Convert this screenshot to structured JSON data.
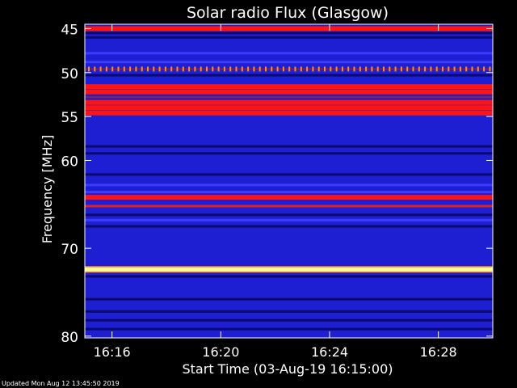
{
  "chart_data": {
    "type": "heatmap",
    "title": "Solar radio Flux (Glasgow)",
    "xlabel": "Start Time (03-Aug-19 16:15:00)",
    "ylabel": "Frequency [MHz]",
    "x_ticks": [
      "16:16",
      "16:20",
      "16:24",
      "16:28"
    ],
    "x_tick_minutes": [
      16,
      20,
      24,
      28
    ],
    "x_range_minutes": [
      15,
      30
    ],
    "y_ticks": [
      45,
      50,
      55,
      60,
      70,
      80
    ],
    "y_range_mhz": [
      44.5,
      80.2
    ],
    "background_level": "blue",
    "bands": [
      {
        "mhz": 45.0,
        "level": "red"
      },
      {
        "mhz": 45.5,
        "level": "dark"
      },
      {
        "mhz": 46.0,
        "level": "dark"
      },
      {
        "mhz": 47.8,
        "level": "bright-blue"
      },
      {
        "mhz": 48.8,
        "level": "bright-blue"
      },
      {
        "mhz": 49.6,
        "level": "orange-ticks"
      },
      {
        "mhz": 50.3,
        "level": "dark"
      },
      {
        "mhz": 51.6,
        "level": "red"
      },
      {
        "mhz": 52.2,
        "level": "red"
      },
      {
        "mhz": 52.8,
        "level": "red-dark"
      },
      {
        "mhz": 53.4,
        "level": "red"
      },
      {
        "mhz": 54.0,
        "level": "red"
      },
      {
        "mhz": 54.6,
        "level": "red"
      },
      {
        "mhz": 55.3,
        "level": "blue"
      },
      {
        "mhz": 58.4,
        "level": "dark"
      },
      {
        "mhz": 59.2,
        "level": "dark"
      },
      {
        "mhz": 61.6,
        "level": "dark"
      },
      {
        "mhz": 62.8,
        "level": "bright-blue"
      },
      {
        "mhz": 63.6,
        "level": "bright-blue"
      },
      {
        "mhz": 64.2,
        "level": "red"
      },
      {
        "mhz": 65.2,
        "level": "red-thin"
      },
      {
        "mhz": 66.2,
        "level": "dark"
      },
      {
        "mhz": 66.8,
        "level": "bright-blue"
      },
      {
        "mhz": 67.5,
        "level": "dark"
      },
      {
        "mhz": 72.4,
        "level": "yellow"
      },
      {
        "mhz": 73.2,
        "level": "dark"
      },
      {
        "mhz": 75.8,
        "level": "dark"
      },
      {
        "mhz": 77.2,
        "level": "dark"
      },
      {
        "mhz": 78.2,
        "level": "dark"
      },
      {
        "mhz": 79.2,
        "level": "dark"
      }
    ],
    "color_levels": {
      "dark": "#0a0a6e",
      "blue": "#1e1ed2",
      "bright-blue": "#3c3cff",
      "red-dark": "#a01e28",
      "red": "#ff1414",
      "red-thin": "#e61e1e",
      "orange-ticks": "#ff8c1e",
      "yellow": "#ffffa0"
    },
    "grid": false,
    "legend": "none"
  },
  "footer": {
    "updated": "Updated Mon Aug 12 13:45:50 2019"
  }
}
